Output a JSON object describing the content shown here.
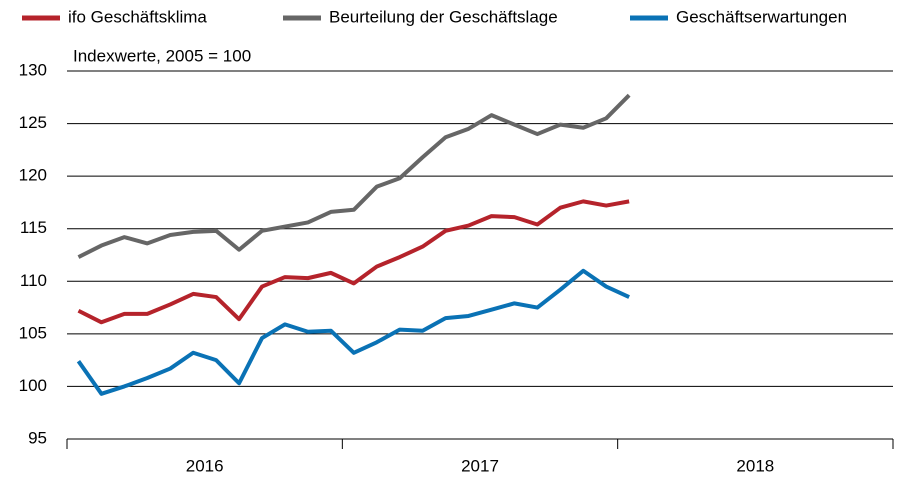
{
  "chart_data": {
    "type": "line",
    "subtitle": "Indexwerte, 2005 = 100",
    "x": [
      0.5,
      1.5,
      2.5,
      3.5,
      4.5,
      5.5,
      6.5,
      7.5,
      8.5,
      9.5,
      10.5,
      11.5,
      12.5,
      13.5,
      14.5,
      15.5,
      16.5,
      17.5,
      18.5,
      19.5,
      20.5,
      21.5,
      22.5,
      23.5,
      24.5
    ],
    "xlim": [
      0,
      36
    ],
    "xticks": [
      {
        "value": 6,
        "label": "2016"
      },
      {
        "value": 18,
        "label": "2017"
      },
      {
        "value": 30,
        "label": "2018"
      }
    ],
    "x_boundaries": [
      0,
      12,
      24,
      36
    ],
    "ylim": [
      95,
      130
    ],
    "yticks": [
      95,
      100,
      105,
      110,
      115,
      120,
      125,
      130
    ],
    "grid": true,
    "series": [
      {
        "name": "ifo Geschäftsklima",
        "color": "#b5232b",
        "values": [
          107.2,
          106.1,
          106.9,
          106.9,
          107.8,
          108.8,
          108.5,
          106.4,
          109.5,
          110.4,
          110.3,
          110.8,
          109.8,
          111.4,
          112.3,
          113.3,
          114.8,
          115.3,
          116.2,
          116.1,
          115.4,
          117.0,
          117.6,
          117.2,
          117.6
        ]
      },
      {
        "name": "Beurteilung der Geschäftslage",
        "color": "#666666",
        "values": [
          112.3,
          113.4,
          114.2,
          113.6,
          114.4,
          114.7,
          114.8,
          113.0,
          114.8,
          115.2,
          115.6,
          116.6,
          116.8,
          119.0,
          119.8,
          121.8,
          123.7,
          124.5,
          125.8,
          124.9,
          124.0,
          124.9,
          124.6,
          125.5,
          127.7
        ]
      },
      {
        "name": "Geschäftserwartungen",
        "color": "#0a72b5",
        "values": [
          102.4,
          99.3,
          100.0,
          100.8,
          101.7,
          103.2,
          102.5,
          100.3,
          104.6,
          105.9,
          105.2,
          105.3,
          103.2,
          104.2,
          105.4,
          105.3,
          106.5,
          106.7,
          107.3,
          107.9,
          107.5,
          109.2,
          111.0,
          109.5,
          108.5
        ]
      }
    ]
  }
}
